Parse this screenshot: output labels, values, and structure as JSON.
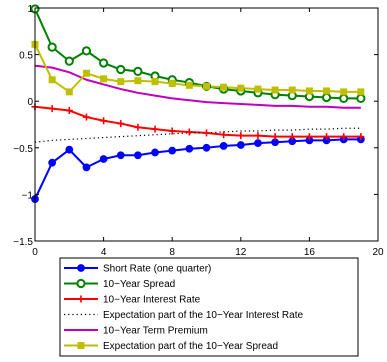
{
  "chart_data": {
    "type": "line",
    "title": "",
    "xlabel": "",
    "ylabel": "",
    "xlim": [
      0,
      20
    ],
    "ylim": [
      -1.5,
      1
    ],
    "x_ticks": [
      0,
      4,
      8,
      12,
      16,
      20
    ],
    "y_ticks": [
      -1.5,
      -1,
      -0.5,
      0,
      0.5,
      1
    ],
    "x_tick_labels": [
      "0",
      "4",
      "8",
      "12",
      "16",
      "20"
    ],
    "y_tick_labels": [
      "−1.5",
      "−1",
      "−0.5",
      "0",
      "0.5",
      "1"
    ],
    "grid": false,
    "legend_position": "below",
    "x": [
      0,
      1,
      2,
      3,
      4,
      5,
      6,
      7,
      8,
      9,
      10,
      11,
      12,
      13,
      14,
      15,
      16,
      17,
      18,
      19
    ],
    "series": [
      {
        "name": "Short Rate (one quarter)",
        "color": "#0000ff",
        "line": "solid",
        "marker": "dot",
        "values": [
          -1.05,
          -0.66,
          -0.52,
          -0.71,
          -0.62,
          -0.58,
          -0.58,
          -0.55,
          -0.53,
          -0.51,
          -0.5,
          -0.48,
          -0.47,
          -0.45,
          -0.44,
          -0.43,
          -0.42,
          -0.42,
          -0.41,
          -0.41
        ]
      },
      {
        "name": "10−Year Spread",
        "color": "#008000",
        "line": "solid",
        "marker": "circle",
        "values": [
          0.99,
          0.58,
          0.43,
          0.54,
          0.41,
          0.34,
          0.32,
          0.27,
          0.23,
          0.2,
          0.16,
          0.13,
          0.11,
          0.09,
          0.07,
          0.06,
          0.05,
          0.04,
          0.03,
          0.03
        ]
      },
      {
        "name": "10−Year Interest Rate",
        "color": "#ff0000",
        "line": "solid",
        "marker": "plus",
        "values": [
          -0.06,
          -0.08,
          -0.1,
          -0.17,
          -0.21,
          -0.24,
          -0.28,
          -0.3,
          -0.32,
          -0.33,
          -0.34,
          -0.36,
          -0.37,
          -0.37,
          -0.38,
          -0.38,
          -0.38,
          -0.38,
          -0.38,
          -0.38
        ]
      },
      {
        "name": "Expectation part of the 10−Year Interest Rate",
        "color": "#000000",
        "line": "dotted",
        "marker": "none",
        "values": [
          -0.44,
          -0.42,
          -0.41,
          -0.4,
          -0.39,
          -0.38,
          -0.37,
          -0.36,
          -0.35,
          -0.34,
          -0.34,
          -0.33,
          -0.32,
          -0.32,
          -0.31,
          -0.31,
          -0.3,
          -0.3,
          -0.29,
          -0.29
        ]
      },
      {
        "name": "10−Year Term Premium",
        "color": "#bf00bf",
        "line": "solid",
        "marker": "none",
        "values": [
          0.38,
          0.36,
          0.31,
          0.23,
          0.18,
          0.13,
          0.09,
          0.06,
          0.03,
          0.01,
          -0.01,
          -0.02,
          -0.03,
          -0.04,
          -0.05,
          -0.05,
          -0.06,
          -0.06,
          -0.07,
          -0.07
        ]
      },
      {
        "name": "Expectation part of the 10−Year Spread",
        "color": "#bfbf00",
        "line": "solid",
        "marker": "square",
        "values": [
          0.61,
          0.23,
          0.1,
          0.3,
          0.24,
          0.21,
          0.22,
          0.21,
          0.19,
          0.17,
          0.16,
          0.15,
          0.14,
          0.13,
          0.12,
          0.12,
          0.11,
          0.11,
          0.1,
          0.1
        ]
      }
    ]
  }
}
